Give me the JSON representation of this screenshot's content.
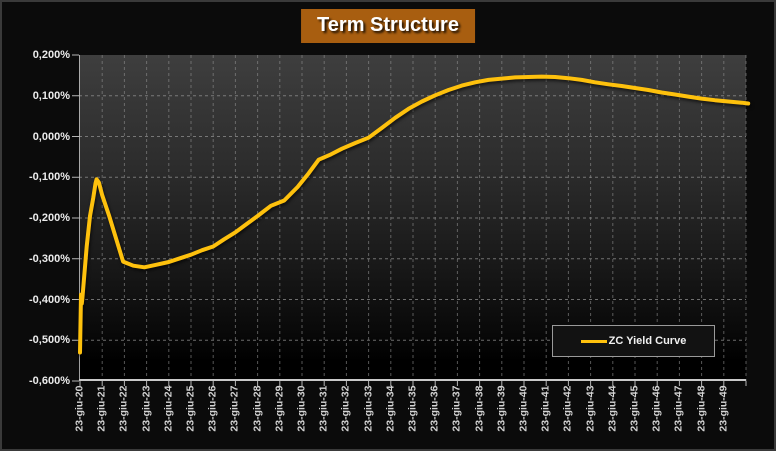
{
  "title": "Term Structure",
  "legend": {
    "label": "ZC Yield Curve"
  },
  "colors": {
    "page_bg": "#0B0B0B",
    "title_bg": "#A85E10",
    "title_text": "#FFFFFF",
    "curve": "#FEC10D",
    "grid": "#8F8F8F",
    "axis": "#C9C9C9",
    "tick": "#B5B5B5",
    "y_label_text": "#ECECEC",
    "x_label_text": "#D4D4D4"
  },
  "chart_data": {
    "type": "line",
    "title": "Term Structure",
    "xlabel": "",
    "ylabel": "",
    "ylim": [
      -0.6,
      0.2
    ],
    "y_tick_step": 0.1,
    "y_tick_labels": [
      "0,200%",
      "0,100%",
      "0,000%",
      "-0,100%",
      "-0,200%",
      "-0,300%",
      "-0,400%",
      "-0,500%",
      "-0,600%"
    ],
    "grid": true,
    "legend_position": "bottom-right",
    "categories": [
      "23-giu-20",
      "23-giu-21",
      "23-giu-22",
      "23-giu-23",
      "23-giu-24",
      "23-giu-25",
      "23-giu-26",
      "23-giu-27",
      "23-giu-28",
      "23-giu-29",
      "23-giu-30",
      "23-giu-31",
      "23-giu-32",
      "23-giu-33",
      "23-giu-34",
      "23-giu-35",
      "23-giu-36",
      "23-giu-37",
      "23-giu-38",
      "23-giu-39",
      "23-giu-40",
      "23-giu-41",
      "23-giu-42",
      "23-giu-43",
      "23-giu-44",
      "23-giu-45",
      "23-giu-46",
      "23-giu-47",
      "23-giu-48",
      "23-giu-49"
    ],
    "series": [
      {
        "name": "ZC Yield Curve",
        "unit": "%",
        "values": [
          -0.53,
          -0.14,
          -0.305,
          -0.32,
          -0.308,
          -0.29,
          -0.27,
          -0.235,
          -0.198,
          -0.162,
          -0.118,
          -0.055,
          -0.029,
          -0.003,
          0.033,
          0.072,
          0.101,
          0.121,
          0.135,
          0.142,
          0.146,
          0.147,
          0.143,
          0.136,
          0.128,
          0.119,
          0.11,
          0.102,
          0.093,
          0.087
        ]
      }
    ],
    "render_points": [
      [
        0.0,
        -0.53
      ],
      [
        0.045,
        -0.388
      ],
      [
        0.08,
        -0.41
      ],
      [
        0.11,
        -0.396
      ],
      [
        0.3,
        -0.27
      ],
      [
        0.45,
        -0.195
      ],
      [
        0.6,
        -0.15
      ],
      [
        0.7,
        -0.115
      ],
      [
        0.75,
        -0.105
      ],
      [
        0.85,
        -0.113
      ],
      [
        1.0,
        -0.144
      ],
      [
        1.3,
        -0.193
      ],
      [
        1.6,
        -0.246
      ],
      [
        1.94,
        -0.307
      ],
      [
        2.4,
        -0.317
      ],
      [
        2.9,
        -0.321
      ],
      [
        3.4,
        -0.315
      ],
      [
        4.0,
        -0.308
      ],
      [
        4.5,
        -0.299
      ],
      [
        5.0,
        -0.29
      ],
      [
        5.5,
        -0.279
      ],
      [
        6.0,
        -0.27
      ],
      [
        6.5,
        -0.252
      ],
      [
        7.0,
        -0.235
      ],
      [
        7.5,
        -0.215
      ],
      [
        8.0,
        -0.195
      ],
      [
        8.6,
        -0.17
      ],
      [
        9.2,
        -0.157
      ],
      [
        9.8,
        -0.124
      ],
      [
        10.3,
        -0.09
      ],
      [
        10.75,
        -0.057
      ],
      [
        11.3,
        -0.044
      ],
      [
        11.8,
        -0.03
      ],
      [
        12.4,
        -0.016
      ],
      [
        13.0,
        -0.003
      ],
      [
        13.6,
        0.021
      ],
      [
        14.2,
        0.046
      ],
      [
        14.8,
        0.068
      ],
      [
        15.4,
        0.086
      ],
      [
        16.0,
        0.101
      ],
      [
        16.6,
        0.114
      ],
      [
        17.2,
        0.125
      ],
      [
        17.8,
        0.133
      ],
      [
        18.4,
        0.139
      ],
      [
        19.0,
        0.142
      ],
      [
        19.6,
        0.145
      ],
      [
        20.2,
        0.146
      ],
      [
        20.8,
        0.147
      ],
      [
        21.4,
        0.146
      ],
      [
        22.0,
        0.143
      ],
      [
        22.6,
        0.139
      ],
      [
        23.2,
        0.133
      ],
      [
        23.8,
        0.128
      ],
      [
        24.4,
        0.124
      ],
      [
        25.0,
        0.119
      ],
      [
        25.6,
        0.114
      ],
      [
        26.2,
        0.108
      ],
      [
        26.8,
        0.103
      ],
      [
        27.4,
        0.098
      ],
      [
        28.0,
        0.093
      ],
      [
        28.6,
        0.089
      ],
      [
        29.2,
        0.086
      ],
      [
        29.8,
        0.083
      ],
      [
        30.1,
        0.081
      ]
    ]
  }
}
